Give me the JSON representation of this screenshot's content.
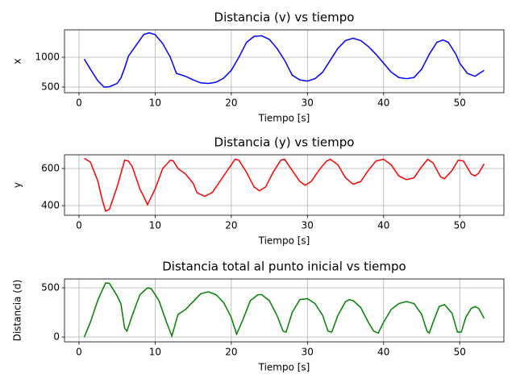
{
  "chart_data": [
    {
      "type": "line",
      "title": "Distancia (v) vs tiempo",
      "xlabel": "Tiempo [s]",
      "ylabel": "x",
      "color": "#0000ff",
      "grid": true,
      "xlim": [
        -1.9,
        55.8
      ],
      "xticks": [
        0,
        10,
        20,
        30,
        40,
        50
      ],
      "ylim": [
        405,
        1460
      ],
      "yticks": [
        500,
        1000
      ],
      "x": [
        0.7,
        1.5,
        2.5,
        3.3,
        4,
        5,
        5.5,
        6,
        6.5,
        7.5,
        8.5,
        9.2,
        10,
        11,
        12,
        12.8,
        14,
        15,
        16,
        17,
        18,
        19,
        20,
        21,
        22,
        23,
        24,
        25,
        26,
        27,
        28,
        29,
        30,
        31,
        32,
        33,
        34,
        35,
        36,
        37,
        38,
        39,
        40,
        41,
        42,
        43,
        44,
        45,
        46,
        47,
        47.8,
        48.5,
        49.5,
        50,
        51,
        52,
        53.2
      ],
      "values": [
        970,
        800,
        600,
        500,
        505,
        560,
        650,
        820,
        1020,
        1200,
        1380,
        1410,
        1380,
        1230,
        1000,
        730,
        680,
        620,
        570,
        560,
        580,
        650,
        780,
        1000,
        1250,
        1350,
        1360,
        1300,
        1150,
        950,
        700,
        620,
        600,
        640,
        750,
        950,
        1150,
        1280,
        1320,
        1280,
        1180,
        1050,
        900,
        750,
        660,
        640,
        660,
        800,
        1050,
        1250,
        1290,
        1250,
        1050,
        900,
        730,
        680,
        780
      ]
    },
    {
      "type": "line",
      "title": "Distancia (y) vs tiempo",
      "xlabel": "Tiempo [s]",
      "ylabel": "y",
      "color": "#ff0000",
      "grid": true,
      "xlim": [
        -1.9,
        55.8
      ],
      "xticks": [
        0,
        10,
        20,
        30,
        40,
        50
      ],
      "ylim": [
        348,
        674
      ],
      "yticks": [
        400,
        600
      ],
      "x": [
        0.7,
        1.5,
        2.5,
        3,
        3.5,
        4,
        5,
        6,
        6.5,
        7,
        8,
        8.5,
        9,
        10,
        11,
        12,
        12.4,
        13,
        14,
        15,
        15.5,
        16.5,
        17.5,
        18.5,
        19.5,
        20.5,
        21,
        22,
        23,
        23.7,
        24.5,
        25.5,
        26.5,
        27,
        28,
        29,
        29.7,
        30.5,
        31.5,
        32.5,
        33,
        34,
        35,
        36,
        37,
        38,
        39,
        40,
        41,
        42,
        43,
        44,
        45,
        45.8,
        46.5,
        47.5,
        48,
        49,
        49.8,
        50.5,
        51.5,
        52,
        52.5,
        53.2
      ],
      "values": [
        655,
        635,
        530,
        440,
        370,
        380,
        500,
        645,
        640,
        610,
        490,
        450,
        405,
        490,
        600,
        645,
        640,
        600,
        570,
        520,
        470,
        450,
        470,
        530,
        590,
        650,
        645,
        580,
        500,
        480,
        500,
        580,
        645,
        650,
        590,
        530,
        510,
        530,
        590,
        640,
        650,
        620,
        550,
        515,
        530,
        590,
        640,
        650,
        620,
        560,
        540,
        550,
        610,
        650,
        630,
        555,
        545,
        590,
        645,
        640,
        570,
        560,
        575,
        625
      ]
    },
    {
      "type": "line",
      "title": "Distancia total al punto inicial vs tiempo",
      "xlabel": "Tiempo [s]",
      "ylabel": "Distancia (d)",
      "color": "#008000",
      "grid": true,
      "xlim": [
        -1.9,
        55.8
      ],
      "xticks": [
        0,
        10,
        20,
        30,
        40,
        50
      ],
      "ylim": [
        -49,
        590
      ],
      "yticks": [
        0,
        500
      ],
      "x": [
        0.7,
        1.5,
        2.5,
        3.5,
        4,
        5,
        5.5,
        6,
        6.3,
        7,
        8,
        9,
        9.5,
        10.5,
        11.5,
        12.2,
        13,
        14,
        15,
        16,
        17,
        18,
        19,
        20,
        20.7,
        21.5,
        22.5,
        23.5,
        24,
        25,
        26,
        26.8,
        27.2,
        28,
        29,
        30,
        31,
        32,
        32.7,
        33.2,
        34,
        35,
        35.5,
        36,
        37,
        38,
        38.7,
        39.3,
        40,
        41,
        42,
        43,
        44,
        45,
        45.7,
        46,
        46.5,
        47.3,
        48,
        49,
        49.7,
        50.2,
        50.8,
        51.5,
        52,
        52.5,
        53.2
      ],
      "values": [
        0,
        150,
        380,
        550,
        545,
        420,
        340,
        90,
        60,
        220,
        430,
        500,
        490,
        370,
        150,
        10,
        230,
        280,
        360,
        440,
        460,
        430,
        350,
        200,
        30,
        170,
        370,
        430,
        430,
        370,
        220,
        60,
        50,
        250,
        380,
        390,
        340,
        220,
        60,
        50,
        220,
        360,
        380,
        370,
        300,
        150,
        60,
        40,
        150,
        280,
        340,
        360,
        340,
        230,
        60,
        40,
        150,
        310,
        330,
        240,
        50,
        50,
        200,
        290,
        310,
        290,
        190
      ]
    }
  ]
}
